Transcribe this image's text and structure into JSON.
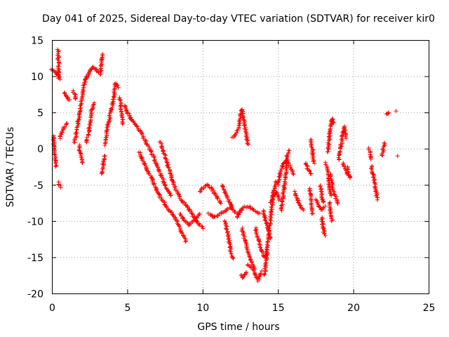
{
  "chart_data": {
    "type": "scatter",
    "title": "Day 041 of 2025, Sidereal Day-to-day VTEC variation (SDTVAR) for receiver kir0",
    "xlabel": "GPS time / hours",
    "ylabel": "SDTVAR / TECUs",
    "xlim": [
      0,
      25
    ],
    "ylim": [
      -20,
      15
    ],
    "xticks": [
      "0",
      "5",
      "10",
      "15",
      "20",
      "25"
    ],
    "yticks": [
      "15",
      "10",
      "5",
      "0",
      "-5",
      "-10",
      "-15",
      "-20"
    ],
    "grid": true,
    "marker": "+",
    "color": "#ff0000",
    "segments": [
      [
        [
          0.0,
          11.0
        ],
        [
          0.2,
          10.6
        ],
        [
          0.4,
          10.0
        ],
        [
          0.5,
          9.6
        ]
      ],
      [
        [
          0.1,
          1.8
        ],
        [
          0.15,
          0.0
        ],
        [
          0.2,
          -1.5
        ],
        [
          0.3,
          -2.5
        ]
      ],
      [
        [
          0.4,
          13.6
        ],
        [
          0.45,
          11.5
        ],
        [
          0.5,
          10.0
        ]
      ],
      [
        [
          0.45,
          -4.7
        ],
        [
          0.55,
          -5.3
        ]
      ],
      [
        [
          0.5,
          1.5
        ],
        [
          0.8,
          3.0
        ],
        [
          1.0,
          3.5
        ]
      ],
      [
        [
          0.8,
          7.8
        ],
        [
          1.0,
          7.0
        ],
        [
          1.2,
          6.7
        ]
      ],
      [
        [
          1.4,
          8.0
        ],
        [
          1.5,
          7.5
        ],
        [
          1.6,
          6.8
        ]
      ],
      [
        [
          1.5,
          0.8
        ],
        [
          1.7,
          3.0
        ],
        [
          1.9,
          6.0
        ],
        [
          2.1,
          8.5
        ],
        [
          2.3,
          10.0
        ]
      ],
      [
        [
          1.8,
          0.5
        ],
        [
          1.9,
          -1.0
        ],
        [
          2.0,
          -2.0
        ]
      ],
      [
        [
          2.2,
          9.5
        ],
        [
          2.5,
          10.5
        ],
        [
          2.7,
          11.3
        ],
        [
          2.9,
          11.0
        ],
        [
          3.1,
          10.5
        ]
      ],
      [
        [
          2.3,
          0.8
        ],
        [
          2.5,
          3.0
        ],
        [
          2.6,
          5.0
        ],
        [
          2.8,
          6.3
        ]
      ],
      [
        [
          3.2,
          10.2
        ],
        [
          3.3,
          12.0
        ],
        [
          3.4,
          13.0
        ]
      ],
      [
        [
          3.3,
          -3.5
        ],
        [
          3.4,
          -2.0
        ],
        [
          3.5,
          -1.0
        ]
      ],
      [
        [
          3.5,
          0.5
        ],
        [
          3.7,
          3.0
        ],
        [
          3.9,
          5.0
        ],
        [
          4.1,
          7.0
        ],
        [
          4.2,
          9.0
        ],
        [
          4.4,
          8.5
        ]
      ],
      [
        [
          4.5,
          7.0
        ],
        [
          4.6,
          5.5
        ],
        [
          4.7,
          3.5
        ]
      ],
      [
        [
          4.8,
          6.0
        ],
        [
          5.0,
          5.0
        ],
        [
          5.3,
          4.0
        ],
        [
          5.6,
          3.2
        ],
        [
          6.0,
          2.0
        ],
        [
          6.3,
          0.5
        ]
      ],
      [
        [
          5.8,
          -0.5
        ],
        [
          6.0,
          -1.5
        ],
        [
          6.3,
          -2.8
        ],
        [
          6.6,
          -4.0
        ],
        [
          6.9,
          -5.5
        ],
        [
          7.2,
          -6.8
        ]
      ],
      [
        [
          6.4,
          0.5
        ],
        [
          6.7,
          -1.0
        ],
        [
          7.0,
          -2.5
        ],
        [
          7.3,
          -4.0
        ],
        [
          7.6,
          -5.5
        ],
        [
          7.9,
          -6.5
        ]
      ],
      [
        [
          7.2,
          1.0
        ],
        [
          7.5,
          -1.0
        ],
        [
          7.8,
          -3.0
        ],
        [
          8.1,
          -5.0
        ],
        [
          8.4,
          -6.5
        ],
        [
          8.7,
          -7.5
        ]
      ],
      [
        [
          7.3,
          -7.0
        ],
        [
          7.6,
          -8.0
        ],
        [
          8.0,
          -9.0
        ],
        [
          8.4,
          -10.5
        ],
        [
          8.7,
          -12.0
        ],
        [
          8.9,
          -12.8
        ]
      ],
      [
        [
          8.5,
          -9.0
        ],
        [
          8.8,
          -10.0
        ],
        [
          9.1,
          -10.5
        ],
        [
          9.5,
          -9.8
        ],
        [
          9.8,
          -9.0
        ]
      ],
      [
        [
          8.8,
          -7.5
        ],
        [
          9.0,
          -8.0
        ],
        [
          9.3,
          -9.0
        ],
        [
          9.6,
          -10.0
        ],
        [
          10.0,
          -11.0
        ]
      ],
      [
        [
          9.8,
          -6.0
        ],
        [
          10.0,
          -5.5
        ],
        [
          10.3,
          -5.0
        ],
        [
          10.6,
          -5.5
        ],
        [
          10.9,
          -6.5
        ],
        [
          11.2,
          -7.5
        ]
      ],
      [
        [
          10.4,
          -9.0
        ],
        [
          10.8,
          -9.5
        ],
        [
          11.2,
          -9.0
        ],
        [
          11.6,
          -8.5
        ],
        [
          12.0,
          -8.0
        ]
      ],
      [
        [
          11.3,
          -5.0
        ],
        [
          11.5,
          -6.0
        ],
        [
          11.7,
          -7.0
        ],
        [
          12.0,
          -8.5
        ],
        [
          12.3,
          -9.0
        ]
      ],
      [
        [
          11.5,
          -10.0
        ],
        [
          11.7,
          -12.0
        ],
        [
          11.9,
          -14.5
        ],
        [
          12.0,
          -15.2
        ]
      ],
      [
        [
          12.0,
          1.5
        ],
        [
          12.2,
          2.0
        ],
        [
          12.4,
          3.0
        ],
        [
          12.5,
          4.5
        ],
        [
          12.6,
          5.5
        ],
        [
          12.7,
          4.5
        ],
        [
          12.8,
          3.0
        ],
        [
          13.0,
          0.5
        ]
      ],
      [
        [
          12.3,
          -9.5
        ],
        [
          12.5,
          -8.5
        ],
        [
          12.8,
          -8.0
        ],
        [
          13.1,
          -8.0
        ],
        [
          13.4,
          -8.5
        ],
        [
          13.8,
          -9.0
        ]
      ],
      [
        [
          12.5,
          -17.5
        ],
        [
          12.7,
          -17.8
        ],
        [
          12.9,
          -17.0
        ]
      ],
      [
        [
          12.6,
          -11.0
        ],
        [
          12.8,
          -12.5
        ],
        [
          13.0,
          -14.0
        ],
        [
          13.2,
          -15.5
        ],
        [
          13.4,
          -16.5
        ]
      ],
      [
        [
          13.0,
          -16.0
        ],
        [
          13.3,
          -16.5
        ],
        [
          13.5,
          -17.5
        ],
        [
          13.7,
          -18.2
        ],
        [
          13.9,
          -17.0
        ]
      ],
      [
        [
          13.5,
          -11.0
        ],
        [
          13.7,
          -12.5
        ],
        [
          13.9,
          -14.0
        ],
        [
          14.1,
          -15.0
        ],
        [
          14.3,
          -14.5
        ]
      ],
      [
        [
          14.0,
          -8.5
        ],
        [
          14.2,
          -10.0
        ],
        [
          14.4,
          -11.5
        ],
        [
          14.5,
          -12.5
        ]
      ],
      [
        [
          14.1,
          -17.5
        ],
        [
          14.2,
          -16.0
        ],
        [
          14.3,
          -13.0
        ],
        [
          14.5,
          -10.0
        ],
        [
          14.7,
          -6.0
        ],
        [
          14.9,
          -4.5
        ]
      ],
      [
        [
          14.5,
          -7.5
        ],
        [
          14.7,
          -6.5
        ],
        [
          14.9,
          -6.0
        ],
        [
          15.1,
          -7.0
        ]
      ],
      [
        [
          15.0,
          -5.0
        ],
        [
          15.2,
          -3.0
        ],
        [
          15.4,
          -2.0
        ],
        [
          15.6,
          -1.5
        ],
        [
          15.8,
          -2.5
        ],
        [
          16.0,
          -3.5
        ]
      ],
      [
        [
          15.2,
          -8.5
        ],
        [
          15.3,
          -7.0
        ],
        [
          15.5,
          -4.0
        ],
        [
          15.6,
          -1.0
        ],
        [
          15.7,
          -0.2
        ]
      ],
      [
        [
          16.1,
          -6.0
        ],
        [
          16.3,
          -7.0
        ],
        [
          16.5,
          -8.0
        ],
        [
          16.7,
          -8.5
        ]
      ],
      [
        [
          16.8,
          -2.0
        ],
        [
          17.0,
          -2.8
        ],
        [
          17.2,
          -3.5
        ]
      ],
      [
        [
          17.1,
          -5.5
        ],
        [
          17.2,
          -7.0
        ],
        [
          17.3,
          -9.0
        ]
      ],
      [
        [
          17.2,
          1.3
        ],
        [
          17.3,
          -0.5
        ],
        [
          17.4,
          -2.0
        ]
      ],
      [
        [
          17.5,
          -7.0
        ],
        [
          17.7,
          -8.0
        ],
        [
          17.9,
          -8.5
        ],
        [
          18.1,
          -8.0
        ]
      ],
      [
        [
          17.8,
          -5.0
        ],
        [
          17.9,
          -6.5
        ],
        [
          18.0,
          -7.5
        ]
      ],
      [
        [
          17.9,
          -9.5
        ],
        [
          18.0,
          -11.0
        ],
        [
          18.1,
          -12.0
        ]
      ],
      [
        [
          18.2,
          -2.0
        ],
        [
          18.3,
          -3.5
        ],
        [
          18.4,
          -5.0
        ],
        [
          18.5,
          -6.5
        ]
      ],
      [
        [
          18.4,
          -7.5
        ],
        [
          18.5,
          -9.0
        ],
        [
          18.6,
          -10.0
        ]
      ],
      [
        [
          18.3,
          -0.5
        ],
        [
          18.4,
          1.5
        ],
        [
          18.5,
          3.0
        ],
        [
          18.6,
          4.2
        ],
        [
          18.7,
          3.5
        ]
      ],
      [
        [
          18.5,
          -3.5
        ],
        [
          18.6,
          -5.5
        ],
        [
          18.8,
          -6.5
        ],
        [
          19.0,
          -7.5
        ]
      ],
      [
        [
          19.0,
          -1.5
        ],
        [
          19.2,
          0.5
        ],
        [
          19.3,
          2.0
        ],
        [
          19.4,
          3.0
        ],
        [
          19.5,
          1.5
        ]
      ],
      [
        [
          19.3,
          -2.0
        ],
        [
          19.5,
          -3.0
        ],
        [
          19.6,
          -3.5
        ],
        [
          19.8,
          -4.0
        ]
      ],
      [
        [
          19.6,
          -2.5
        ],
        [
          19.7,
          -3.5
        ],
        [
          19.8,
          -4.0
        ]
      ],
      [
        [
          21.0,
          0.0
        ],
        [
          21.1,
          -0.5
        ],
        [
          21.2,
          -1.5
        ]
      ],
      [
        [
          21.2,
          -2.5
        ],
        [
          21.3,
          -3.5
        ],
        [
          21.4,
          -4.5
        ],
        [
          21.5,
          -6.0
        ],
        [
          21.6,
          -7.0
        ]
      ],
      [
        [
          21.9,
          -1.0
        ],
        [
          22.0,
          0.0
        ],
        [
          22.1,
          0.8
        ]
      ],
      [
        [
          22.2,
          4.8
        ],
        [
          22.4,
          5.0
        ]
      ],
      [
        [
          22.8,
          5.2
        ]
      ],
      [
        [
          22.9,
          -1.0
        ]
      ]
    ]
  }
}
